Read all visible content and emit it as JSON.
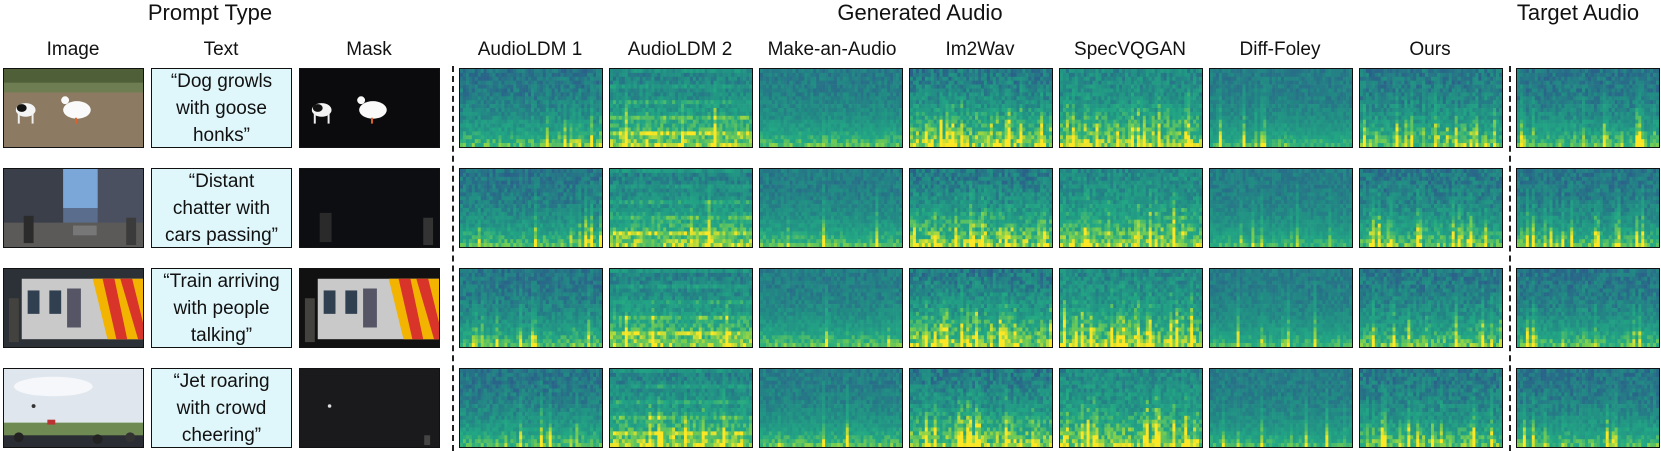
{
  "headers": {
    "prompt_type": "Prompt Type",
    "generated_audio": "Generated Audio",
    "target_audio": "Target Audio"
  },
  "columns": {
    "image": "Image",
    "text": "Text",
    "mask": "Mask",
    "audioldm1": "AudioLDM 1",
    "audioldm2": "AudioLDM 2",
    "make_an_audio": "Make-an-Audio",
    "im2wav": "Im2Wav",
    "specvqgan": "SpecVQGAN",
    "diff_foley": "Diff-Foley",
    "ours": "Ours"
  },
  "rows": [
    {
      "text": "“Dog growls\nwith goose\nhonks”",
      "scene": "dog-goose"
    },
    {
      "text": "“Distant\nchatter with\ncars passing”",
      "scene": "street"
    },
    {
      "text": "“Train arriving\nwith people\ntalking”",
      "scene": "train"
    },
    {
      "text": "“Jet roaring\nwith crowd\ncheering”",
      "scene": "jet"
    }
  ],
  "colors": {
    "spectrogram_low": "#2b5c8a",
    "spectrogram_mid": "#22a884",
    "spectrogram_high": "#fde725",
    "text_box_bg": "#dff6fb"
  }
}
